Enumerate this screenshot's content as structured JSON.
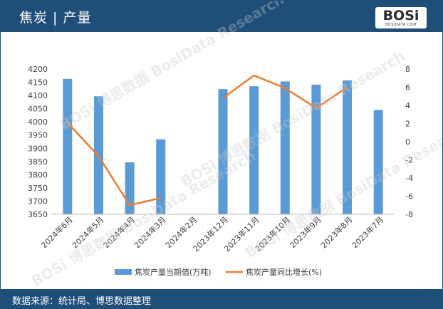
{
  "header": {
    "title": "焦炭 | 产量"
  },
  "logo": {
    "word": "BOSi",
    "sub": "BOSIDATA.COM"
  },
  "watermark": {
    "text": "BOSi 博思数据 BosiData Research"
  },
  "footer": {
    "source": "数据来源：统计局、博思数据整理"
  },
  "colors": {
    "bar": "#5b9bd5",
    "line": "#ed7d31",
    "header": "#1f4e79"
  },
  "chart_data": {
    "type": "bar+line",
    "categories": [
      "2024年6月",
      "2024年5月",
      "2024年4月",
      "2024年3月",
      "2024年2月",
      "2023年12月",
      "2023年11月",
      "2023年10月",
      "2023年9月",
      "2023年8月",
      "2023年7月"
    ],
    "series": [
      {
        "name": "焦炭产量当期值(万吨)",
        "type": "bar",
        "axis": "left",
        "values": [
          4163,
          4097,
          3847,
          3934,
          null,
          4124,
          4135,
          4153,
          4141,
          4157,
          4045
        ]
      },
      {
        "name": "焦炭产量同比增长(%)",
        "type": "line",
        "axis": "right",
        "values": [
          2.1,
          -1.6,
          -7.0,
          -6.2,
          null,
          4.8,
          7.3,
          5.9,
          3.7,
          6.0,
          null
        ]
      }
    ],
    "y_left": {
      "min": 3650,
      "max": 4200,
      "ticks": [
        3650,
        3700,
        3750,
        3800,
        3850,
        3900,
        3950,
        4000,
        4050,
        4100,
        4150,
        4200
      ]
    },
    "y_right": {
      "min": -8,
      "max": 8,
      "ticks": [
        -8,
        -6,
        -4,
        -2,
        0,
        2,
        4,
        6,
        8
      ]
    },
    "legend_position": "bottom",
    "grid": false
  }
}
